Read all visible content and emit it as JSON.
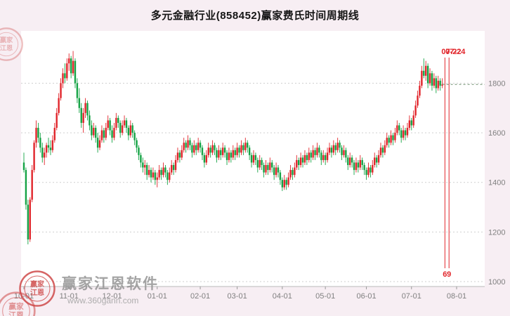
{
  "window": {
    "title": "多元金融行业(858452)赢家费氏时间周期线"
  },
  "colors": {
    "bg": "#f7eef3",
    "plot_bg": "#ffffff",
    "grid": "#cfcfcf",
    "axis_line": "#b8b8b8",
    "axis_text": "#808080",
    "up": "#e1252b",
    "down": "#15a345",
    "cycle_line": "#e1252b",
    "last_price_line": "#6e8f6e",
    "watermark_red": "#cf4a4a"
  },
  "chart_data": {
    "type": "candlestick",
    "title": "多元金融行业(858452)赢家费氏时间周期线",
    "series_name": "多元金融行业(858452)",
    "y_ticks": [
      1000,
      1200,
      1400,
      1600,
      1800
    ],
    "ylim": [
      980,
      1960
    ],
    "grid": "horizontal-dotted",
    "legend_position": "none",
    "x_ticks": [
      {
        "label": "10-01",
        "day": 0
      },
      {
        "label": "11-01",
        "day": 22
      },
      {
        "label": "12-01",
        "day": 43
      },
      {
        "label": "01-01",
        "day": 65
      },
      {
        "label": "02-01",
        "day": 86
      },
      {
        "label": "03-01",
        "day": 104
      },
      {
        "label": "04-01",
        "day": 126
      },
      {
        "label": "05-01",
        "day": 147
      },
      {
        "label": "06-01",
        "day": 167
      },
      {
        "label": "07-01",
        "day": 189
      },
      {
        "label": "08-01",
        "day": 211
      }
    ],
    "total_days": 212,
    "candles": [
      [
        1480,
        1520,
        1440,
        1450
      ],
      [
        1450,
        1460,
        1290,
        1310
      ],
      [
        1310,
        1330,
        1150,
        1170
      ],
      [
        1170,
        1340,
        1160,
        1330
      ],
      [
        1330,
        1470,
        1320,
        1450
      ],
      [
        1450,
        1570,
        1440,
        1560
      ],
      [
        1560,
        1650,
        1540,
        1620
      ],
      [
        1620,
        1640,
        1560,
        1580
      ],
      [
        1580,
        1600,
        1520,
        1540
      ],
      [
        1540,
        1560,
        1480,
        1500
      ],
      [
        1500,
        1540,
        1470,
        1520
      ],
      [
        1520,
        1560,
        1500,
        1550
      ],
      [
        1550,
        1580,
        1520,
        1540
      ],
      [
        1540,
        1570,
        1510,
        1530
      ],
      [
        1530,
        1590,
        1520,
        1570
      ],
      [
        1570,
        1640,
        1560,
        1620
      ],
      [
        1620,
        1700,
        1610,
        1680
      ],
      [
        1680,
        1760,
        1670,
        1740
      ],
      [
        1740,
        1820,
        1730,
        1800
      ],
      [
        1800,
        1860,
        1780,
        1840
      ],
      [
        1840,
        1880,
        1800,
        1820
      ],
      [
        1820,
        1900,
        1810,
        1880
      ],
      [
        1880,
        1920,
        1850,
        1900
      ],
      [
        1900,
        1910,
        1820,
        1840
      ],
      [
        1840,
        1930,
        1830,
        1890
      ],
      [
        1890,
        1900,
        1780,
        1800
      ],
      [
        1800,
        1820,
        1720,
        1740
      ],
      [
        1740,
        1780,
        1680,
        1700
      ],
      [
        1700,
        1720,
        1620,
        1640
      ],
      [
        1640,
        1700,
        1600,
        1680
      ],
      [
        1680,
        1740,
        1660,
        1720
      ],
      [
        1720,
        1730,
        1650,
        1670
      ],
      [
        1670,
        1690,
        1610,
        1630
      ],
      [
        1630,
        1650,
        1570,
        1590
      ],
      [
        1590,
        1640,
        1580,
        1620
      ],
      [
        1620,
        1630,
        1560,
        1580
      ],
      [
        1580,
        1600,
        1520,
        1540
      ],
      [
        1540,
        1590,
        1530,
        1570
      ],
      [
        1570,
        1630,
        1560,
        1610
      ],
      [
        1610,
        1620,
        1560,
        1580
      ],
      [
        1580,
        1640,
        1570,
        1620
      ],
      [
        1620,
        1670,
        1610,
        1650
      ],
      [
        1650,
        1660,
        1590,
        1610
      ],
      [
        1610,
        1630,
        1560,
        1580
      ],
      [
        1580,
        1640,
        1570,
        1620
      ],
      [
        1620,
        1680,
        1610,
        1660
      ],
      [
        1660,
        1670,
        1620,
        1640
      ],
      [
        1640,
        1650,
        1580,
        1600
      ],
      [
        1600,
        1650,
        1590,
        1630
      ],
      [
        1630,
        1670,
        1620,
        1650
      ],
      [
        1650,
        1660,
        1600,
        1620
      ],
      [
        1620,
        1630,
        1570,
        1590
      ],
      [
        1590,
        1650,
        1580,
        1630
      ],
      [
        1630,
        1640,
        1580,
        1600
      ],
      [
        1600,
        1610,
        1550,
        1570
      ],
      [
        1570,
        1580,
        1520,
        1540
      ],
      [
        1540,
        1550,
        1490,
        1510
      ],
      [
        1510,
        1520,
        1460,
        1480
      ],
      [
        1480,
        1500,
        1440,
        1460
      ],
      [
        1460,
        1490,
        1430,
        1470
      ],
      [
        1470,
        1480,
        1410,
        1430
      ],
      [
        1430,
        1470,
        1420,
        1450
      ],
      [
        1450,
        1460,
        1400,
        1420
      ],
      [
        1420,
        1460,
        1410,
        1440
      ],
      [
        1440,
        1450,
        1390,
        1410
      ],
      [
        1410,
        1440,
        1380,
        1420
      ],
      [
        1420,
        1470,
        1410,
        1450
      ],
      [
        1450,
        1460,
        1410,
        1430
      ],
      [
        1430,
        1480,
        1420,
        1460
      ],
      [
        1460,
        1470,
        1420,
        1440
      ],
      [
        1440,
        1450,
        1390,
        1410
      ],
      [
        1410,
        1460,
        1400,
        1440
      ],
      [
        1440,
        1490,
        1430,
        1470
      ],
      [
        1470,
        1480,
        1430,
        1450
      ],
      [
        1450,
        1510,
        1440,
        1490
      ],
      [
        1490,
        1540,
        1480,
        1520
      ],
      [
        1520,
        1530,
        1480,
        1500
      ],
      [
        1500,
        1550,
        1490,
        1530
      ],
      [
        1530,
        1580,
        1520,
        1560
      ],
      [
        1560,
        1570,
        1520,
        1540
      ],
      [
        1540,
        1590,
        1530,
        1570
      ],
      [
        1570,
        1580,
        1530,
        1550
      ],
      [
        1550,
        1560,
        1500,
        1520
      ],
      [
        1520,
        1570,
        1510,
        1550
      ],
      [
        1550,
        1560,
        1510,
        1530
      ],
      [
        1530,
        1580,
        1520,
        1560
      ],
      [
        1560,
        1570,
        1520,
        1540
      ],
      [
        1540,
        1550,
        1490,
        1510
      ],
      [
        1510,
        1520,
        1460,
        1480
      ],
      [
        1480,
        1530,
        1470,
        1510
      ],
      [
        1510,
        1560,
        1500,
        1540
      ],
      [
        1540,
        1550,
        1500,
        1520
      ],
      [
        1520,
        1570,
        1510,
        1550
      ],
      [
        1550,
        1560,
        1510,
        1530
      ],
      [
        1530,
        1540,
        1480,
        1500
      ],
      [
        1500,
        1550,
        1490,
        1530
      ],
      [
        1530,
        1540,
        1490,
        1510
      ],
      [
        1510,
        1560,
        1500,
        1540
      ],
      [
        1540,
        1550,
        1500,
        1520
      ],
      [
        1520,
        1530,
        1470,
        1490
      ],
      [
        1490,
        1540,
        1480,
        1520
      ],
      [
        1520,
        1530,
        1480,
        1500
      ],
      [
        1500,
        1550,
        1490,
        1530
      ],
      [
        1530,
        1540,
        1490,
        1510
      ],
      [
        1510,
        1560,
        1500,
        1540
      ],
      [
        1540,
        1550,
        1500,
        1520
      ],
      [
        1520,
        1570,
        1510,
        1550
      ],
      [
        1550,
        1560,
        1510,
        1530
      ],
      [
        1530,
        1580,
        1520,
        1560
      ],
      [
        1560,
        1570,
        1520,
        1540
      ],
      [
        1540,
        1550,
        1490,
        1510
      ],
      [
        1510,
        1520,
        1460,
        1480
      ],
      [
        1480,
        1530,
        1470,
        1510
      ],
      [
        1510,
        1520,
        1470,
        1490
      ],
      [
        1490,
        1500,
        1440,
        1460
      ],
      [
        1460,
        1510,
        1450,
        1490
      ],
      [
        1490,
        1500,
        1450,
        1470
      ],
      [
        1470,
        1480,
        1420,
        1440
      ],
      [
        1440,
        1490,
        1430,
        1470
      ],
      [
        1470,
        1480,
        1430,
        1450
      ],
      [
        1450,
        1500,
        1440,
        1480
      ],
      [
        1480,
        1490,
        1440,
        1460
      ],
      [
        1460,
        1470,
        1410,
        1430
      ],
      [
        1430,
        1480,
        1420,
        1460
      ],
      [
        1460,
        1470,
        1420,
        1440
      ],
      [
        1440,
        1450,
        1390,
        1410
      ],
      [
        1410,
        1420,
        1365,
        1380
      ],
      [
        1380,
        1430,
        1370,
        1410
      ],
      [
        1410,
        1420,
        1370,
        1390
      ],
      [
        1390,
        1440,
        1380,
        1420
      ],
      [
        1420,
        1470,
        1410,
        1450
      ],
      [
        1450,
        1460,
        1410,
        1430
      ],
      [
        1430,
        1480,
        1420,
        1460
      ],
      [
        1460,
        1510,
        1450,
        1490
      ],
      [
        1490,
        1500,
        1450,
        1470
      ],
      [
        1470,
        1520,
        1460,
        1500
      ],
      [
        1500,
        1510,
        1460,
        1480
      ],
      [
        1480,
        1530,
        1470,
        1510
      ],
      [
        1510,
        1520,
        1470,
        1490
      ],
      [
        1490,
        1540,
        1480,
        1520
      ],
      [
        1520,
        1530,
        1480,
        1500
      ],
      [
        1500,
        1550,
        1490,
        1530
      ],
      [
        1530,
        1540,
        1490,
        1510
      ],
      [
        1510,
        1560,
        1500,
        1540
      ],
      [
        1540,
        1550,
        1500,
        1520
      ],
      [
        1520,
        1530,
        1470,
        1490
      ],
      [
        1490,
        1530,
        1480,
        1510
      ],
      [
        1510,
        1520,
        1470,
        1490
      ],
      [
        1490,
        1540,
        1480,
        1520
      ],
      [
        1520,
        1560,
        1510,
        1540
      ],
      [
        1540,
        1550,
        1500,
        1520
      ],
      [
        1520,
        1570,
        1510,
        1550
      ],
      [
        1550,
        1560,
        1510,
        1530
      ],
      [
        1530,
        1580,
        1520,
        1560
      ],
      [
        1560,
        1570,
        1520,
        1540
      ],
      [
        1540,
        1550,
        1490,
        1510
      ],
      [
        1510,
        1550,
        1500,
        1530
      ],
      [
        1530,
        1540,
        1480,
        1500
      ],
      [
        1500,
        1510,
        1450,
        1470
      ],
      [
        1470,
        1520,
        1460,
        1500
      ],
      [
        1500,
        1510,
        1460,
        1480
      ],
      [
        1480,
        1490,
        1430,
        1450
      ],
      [
        1450,
        1500,
        1440,
        1480
      ],
      [
        1480,
        1490,
        1440,
        1460
      ],
      [
        1460,
        1510,
        1450,
        1490
      ],
      [
        1490,
        1500,
        1450,
        1470
      ],
      [
        1470,
        1480,
        1430,
        1450
      ],
      [
        1450,
        1460,
        1410,
        1430
      ],
      [
        1430,
        1480,
        1420,
        1460
      ],
      [
        1460,
        1470,
        1420,
        1440
      ],
      [
        1440,
        1490,
        1430,
        1470
      ],
      [
        1470,
        1520,
        1460,
        1500
      ],
      [
        1500,
        1510,
        1460,
        1480
      ],
      [
        1480,
        1530,
        1470,
        1510
      ],
      [
        1510,
        1560,
        1500,
        1540
      ],
      [
        1540,
        1550,
        1500,
        1520
      ],
      [
        1520,
        1570,
        1510,
        1550
      ],
      [
        1550,
        1600,
        1540,
        1580
      ],
      [
        1580,
        1590,
        1540,
        1560
      ],
      [
        1560,
        1610,
        1550,
        1590
      ],
      [
        1590,
        1600,
        1550,
        1570
      ],
      [
        1570,
        1620,
        1560,
        1600
      ],
      [
        1600,
        1650,
        1590,
        1630
      ],
      [
        1630,
        1640,
        1590,
        1610
      ],
      [
        1610,
        1620,
        1560,
        1580
      ],
      [
        1580,
        1630,
        1570,
        1610
      ],
      [
        1610,
        1620,
        1570,
        1590
      ],
      [
        1590,
        1640,
        1580,
        1620
      ],
      [
        1620,
        1670,
        1610,
        1650
      ],
      [
        1650,
        1660,
        1610,
        1630
      ],
      [
        1630,
        1690,
        1620,
        1670
      ],
      [
        1670,
        1730,
        1660,
        1710
      ],
      [
        1710,
        1770,
        1700,
        1750
      ],
      [
        1750,
        1810,
        1740,
        1790
      ],
      [
        1790,
        1870,
        1780,
        1850
      ],
      [
        1850,
        1900,
        1820,
        1830
      ],
      [
        1830,
        1890,
        1810,
        1870
      ],
      [
        1870,
        1880,
        1780,
        1800
      ],
      [
        1800,
        1860,
        1790,
        1840
      ],
      [
        1840,
        1850,
        1770,
        1790
      ],
      [
        1790,
        1840,
        1780,
        1820
      ],
      [
        1820,
        1830,
        1760,
        1780
      ],
      [
        1780,
        1830,
        1770,
        1810
      ],
      [
        1810,
        1820,
        1770,
        1790
      ],
      [
        1790,
        1820,
        1780,
        1795
      ]
    ],
    "last_close": 1795,
    "cycle_lines": [
      {
        "day": 205.3,
        "date_label": "07-22",
        "count_label": "6"
      },
      {
        "day": 207.3,
        "date_label": "07-24",
        "count_label": "9"
      }
    ]
  },
  "watermark": {
    "brand": "赢家江恩软件",
    "url": "www.360gann.com",
    "seal_line1": "赢家",
    "seal_line2": "江恩"
  }
}
